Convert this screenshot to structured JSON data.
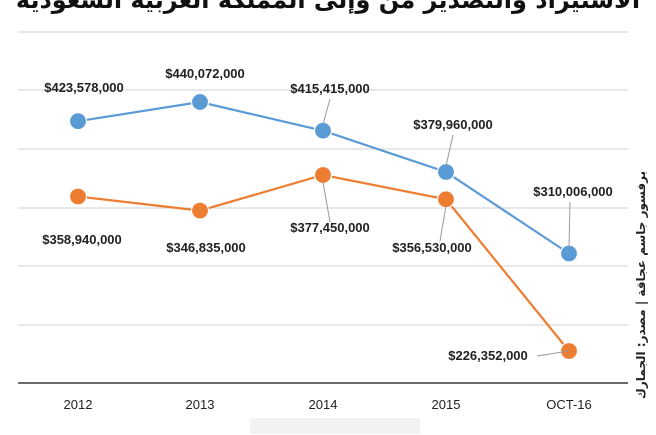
{
  "title": "الاستيراد والتصدير من وإلى المملكة العربية السعودية",
  "source": "برفسور جاسم عجاقة | مصدر: الجمارك",
  "chart_data": {
    "type": "line",
    "categories": [
      "2012",
      "2013",
      "2014",
      "2015",
      "OCT-16"
    ],
    "series": [
      {
        "name": "",
        "color": "#5b9bd5",
        "values": [
          423578000,
          440072000,
          415415000,
          379960000,
          310006000
        ],
        "labels": [
          "$423,578,000",
          "$440,072,000",
          "$415,415,000",
          "$379,960,000",
          "$310,006,000"
        ]
      },
      {
        "name": "",
        "color": "#ed7d31",
        "values": [
          358940000,
          346835000,
          377450000,
          356530000,
          226352000
        ],
        "labels": [
          "$358,940,000",
          "$346,835,000",
          "$377,450,000",
          "$356,530,000",
          "$226,352,000"
        ]
      }
    ],
    "grid": true,
    "legend": "bottom"
  }
}
